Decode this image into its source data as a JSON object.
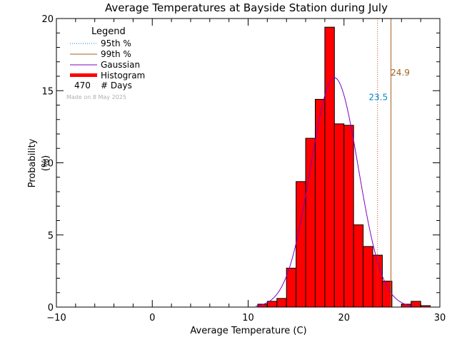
{
  "chart_data": {
    "type": "bar",
    "title": "Average Temperatures at Bayside Station during July",
    "xlabel": "Average Temperature (C)",
    "ylabel_line1": "Probability",
    "ylabel_line2": "(%)",
    "xlim": [
      -10,
      30
    ],
    "ylim": [
      0,
      20
    ],
    "x_ticks": [
      -10,
      0,
      10,
      20,
      30
    ],
    "y_ticks": [
      0,
      5,
      10,
      15,
      20
    ],
    "bin_width": 1,
    "histogram": {
      "name": "Histogram",
      "color": "#ff0000",
      "bins": [
        {
          "x": 11,
          "value": 0.2
        },
        {
          "x": 12,
          "value": 0.4
        },
        {
          "x": 13,
          "value": 0.6
        },
        {
          "x": 14,
          "value": 2.7
        },
        {
          "x": 15,
          "value": 8.7
        },
        {
          "x": 16,
          "value": 11.7
        },
        {
          "x": 17,
          "value": 14.4
        },
        {
          "x": 18,
          "value": 19.4
        },
        {
          "x": 19,
          "value": 12.7
        },
        {
          "x": 20,
          "value": 12.6
        },
        {
          "x": 21,
          "value": 5.7
        },
        {
          "x": 22,
          "value": 4.2
        },
        {
          "x": 23,
          "value": 3.6
        },
        {
          "x": 24,
          "value": 1.8
        },
        {
          "x": 25,
          "value": 0.0
        },
        {
          "x": 26,
          "value": 0.2
        },
        {
          "x": 27,
          "value": 0.4
        },
        {
          "x": 28,
          "value": 0.1
        }
      ]
    },
    "gaussian": {
      "name": "Gaussian",
      "color": "#8000c0",
      "mean": 19.0,
      "sigma": 2.5,
      "peak": 15.9,
      "x_start": 10.8,
      "x_end": 27.2
    },
    "p95": {
      "name": "95th %",
      "value": 23.5,
      "label": "23.5",
      "color": "#008ad0",
      "line_color": "#d04020",
      "label_y": 14.6
    },
    "p99": {
      "name": "99th %",
      "value": 24.9,
      "label": "24.9",
      "color": "#a06020",
      "label_y": 16.3
    },
    "legend": {
      "title": "Legend",
      "count_value": "470",
      "count_label": "# Days",
      "placement": "top-left"
    },
    "made_on": "Made on 8 May 2025",
    "grid": false
  }
}
